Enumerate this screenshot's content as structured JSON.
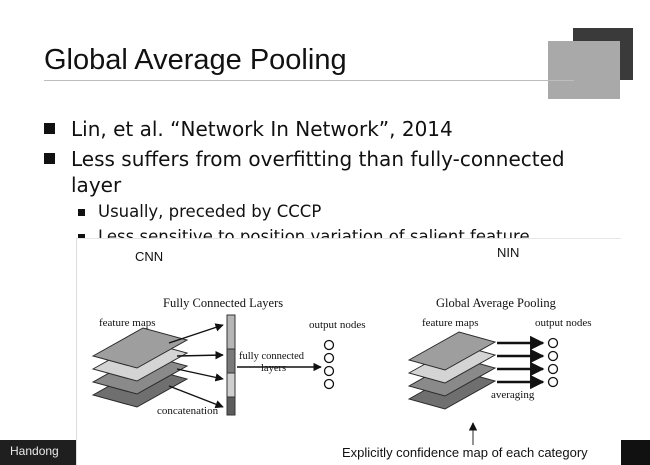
{
  "slide": {
    "title": "Global Average Pooling",
    "bullets": [
      "Lin, et al. “Network In Network”, 2014",
      "Less suffers from overfitting than fully-connected",
      "layer"
    ],
    "sub_bullets": [
      "Usually, preceded by CCCP",
      "Less sensitive to position variation of salient feature"
    ],
    "footer": "Handong"
  },
  "figure": {
    "left_panel": {
      "label": "CNN",
      "heading": "Fully Connected Layers",
      "feature_maps": "feature maps",
      "output_nodes": "output nodes",
      "fc_label_line1": "fully connected",
      "fc_label_line2": "layers",
      "concat_label": "concatenation"
    },
    "right_panel": {
      "label": "NIN",
      "heading": "Global Average Pooling",
      "feature_maps": "feature maps",
      "output_nodes": "output nodes",
      "averaging_label": "averaging"
    },
    "caption": "Explicitly confidence map of each category"
  },
  "colors": {
    "deco_dark": "#3a3a3a",
    "deco_light": "#a9a9a9",
    "footer_bg": "#1f1f1f"
  }
}
